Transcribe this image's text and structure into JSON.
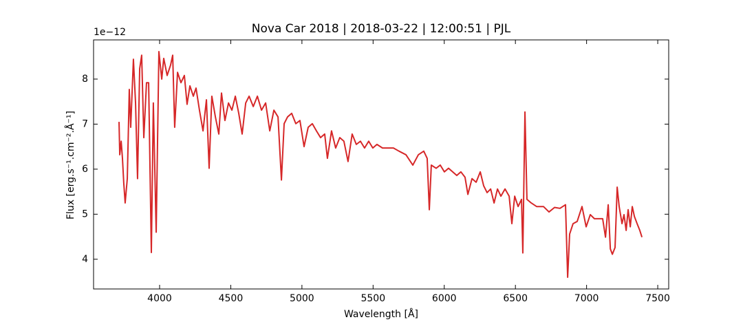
{
  "chart_data": {
    "type": "line",
    "title": "Nova Car 2018 | 2018-03-22 | 12:00:51 | PJL",
    "x_label": "Wavelength [Å]",
    "y_label": "Flux [erg.s⁻¹.cm⁻².Å⁻¹]",
    "y_offset_label": "1e−12",
    "xlim": [
      3536,
      7577
    ],
    "ylim": [
      3.34,
      8.87
    ],
    "xticks": [
      4000,
      4500,
      5000,
      5500,
      6000,
      6500,
      7000,
      7500
    ],
    "yticks": [
      4,
      5,
      6,
      7,
      8
    ],
    "grid": false,
    "series": [
      {
        "name": "Flux",
        "color": "#d62728",
        "x": [
          3715,
          3720,
          3730,
          3739,
          3748,
          3758,
          3773,
          3787,
          3797,
          3816,
          3831,
          3845,
          3860,
          3874,
          3889,
          3908,
          3923,
          3942,
          3956,
          3976,
          3995,
          4015,
          4029,
          4053,
          4077,
          4092,
          4106,
          4126,
          4150,
          4174,
          4193,
          4213,
          4237,
          4256,
          4280,
          4305,
          4329,
          4348,
          4367,
          4392,
          4416,
          4435,
          4459,
          4484,
          4508,
          4532,
          4556,
          4580,
          4605,
          4629,
          4658,
          4687,
          4716,
          4745,
          4774,
          4803,
          4832,
          4856,
          4875,
          4899,
          4928,
          4957,
          4986,
          5015,
          5044,
          5073,
          5102,
          5131,
          5160,
          5179,
          5208,
          5237,
          5266,
          5295,
          5324,
          5353,
          5382,
          5411,
          5440,
          5469,
          5498,
          5527,
          5566,
          5605,
          5643,
          5682,
          5731,
          5779,
          5818,
          5856,
          5880,
          5895,
          5909,
          5943,
          5972,
          6001,
          6030,
          6059,
          6088,
          6117,
          6146,
          6166,
          6195,
          6224,
          6253,
          6277,
          6301,
          6326,
          6350,
          6374,
          6398,
          6427,
          6456,
          6475,
          6495,
          6519,
          6543,
          6552,
          6567,
          6581,
          6611,
          6649,
          6697,
          6736,
          6775,
          6813,
          6852,
          6867,
          6881,
          6905,
          6934,
          6968,
          6997,
          7026,
          7055,
          7084,
          7113,
          7133,
          7152,
          7167,
          7181,
          7200,
          7215,
          7229,
          7249,
          7263,
          7278,
          7292,
          7307,
          7321,
          7336,
          7355,
          7374,
          7389
        ],
        "values": [
          7.05,
          6.32,
          6.62,
          6.24,
          5.7,
          5.25,
          5.79,
          7.77,
          6.93,
          8.44,
          7.47,
          5.79,
          8.23,
          8.53,
          6.7,
          7.92,
          7.92,
          4.15,
          7.47,
          4.6,
          8.61,
          8.0,
          8.46,
          8.08,
          8.31,
          8.53,
          6.93,
          8.15,
          7.92,
          8.08,
          7.44,
          7.85,
          7.62,
          7.8,
          7.31,
          6.85,
          7.54,
          6.02,
          7.62,
          7.16,
          6.78,
          7.69,
          7.08,
          7.47,
          7.31,
          7.62,
          7.24,
          6.78,
          7.47,
          7.62,
          7.39,
          7.62,
          7.31,
          7.47,
          6.85,
          7.31,
          7.16,
          5.76,
          7.01,
          7.16,
          7.24,
          7.01,
          7.08,
          6.5,
          6.93,
          7.01,
          6.85,
          6.7,
          6.78,
          6.24,
          6.85,
          6.47,
          6.7,
          6.62,
          6.17,
          6.78,
          6.55,
          6.62,
          6.47,
          6.62,
          6.47,
          6.55,
          6.47,
          6.47,
          6.47,
          6.4,
          6.32,
          6.09,
          6.32,
          6.4,
          6.24,
          5.1,
          6.09,
          6.02,
          6.09,
          5.94,
          6.02,
          5.94,
          5.86,
          5.94,
          5.82,
          5.44,
          5.79,
          5.71,
          5.94,
          5.63,
          5.48,
          5.56,
          5.25,
          5.56,
          5.4,
          5.56,
          5.4,
          4.79,
          5.4,
          5.17,
          5.33,
          4.14,
          7.27,
          5.33,
          5.25,
          5.17,
          5.17,
          5.05,
          5.15,
          5.13,
          5.21,
          3.6,
          4.56,
          4.79,
          4.84,
          5.17,
          4.72,
          4.99,
          4.9,
          4.9,
          4.9,
          4.49,
          5.21,
          4.23,
          4.11,
          4.26,
          5.6,
          5.17,
          4.79,
          4.99,
          4.64,
          5.1,
          4.72,
          5.17,
          4.95,
          4.79,
          4.64,
          4.49
        ]
      }
    ]
  }
}
